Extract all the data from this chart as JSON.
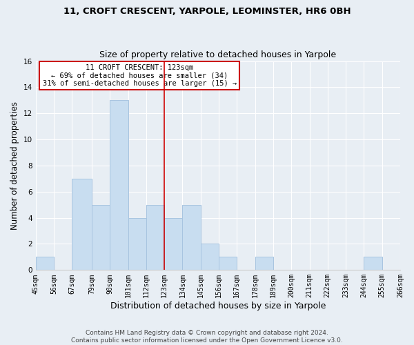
{
  "title1": "11, CROFT CRESCENT, YARPOLE, LEOMINSTER, HR6 0BH",
  "title2": "Size of property relative to detached houses in Yarpole",
  "xlabel": "Distribution of detached houses by size in Yarpole",
  "ylabel": "Number of detached properties",
  "bar_color": "#c8ddf0",
  "bar_edgecolor": "#a8c4e0",
  "bins": [
    45,
    56,
    67,
    79,
    90,
    101,
    112,
    123,
    134,
    145,
    156,
    167,
    178,
    189,
    200,
    211,
    222,
    233,
    244,
    255,
    266
  ],
  "counts": [
    1,
    0,
    7,
    5,
    13,
    4,
    5,
    4,
    5,
    2,
    1,
    0,
    1,
    0,
    0,
    0,
    0,
    0,
    1,
    0
  ],
  "tick_labels": [
    "45sqm",
    "56sqm",
    "67sqm",
    "79sqm",
    "90sqm",
    "101sqm",
    "112sqm",
    "123sqm",
    "134sqm",
    "145sqm",
    "156sqm",
    "167sqm",
    "178sqm",
    "189sqm",
    "200sqm",
    "211sqm",
    "222sqm",
    "233sqm",
    "244sqm",
    "255sqm",
    "266sqm"
  ],
  "vline_x": 123,
  "vline_color": "#cc0000",
  "annotation_line1": "11 CROFT CRESCENT: 123sqm",
  "annotation_line2": "← 69% of detached houses are smaller (34)",
  "annotation_line3": "31% of semi-detached houses are larger (15) →",
  "annotation_box_facecolor": "#ffffff",
  "annotation_box_edgecolor": "#cc0000",
  "ylim": [
    0,
    16
  ],
  "yticks": [
    0,
    2,
    4,
    6,
    8,
    10,
    12,
    14,
    16
  ],
  "footer1": "Contains HM Land Registry data © Crown copyright and database right 2024.",
  "footer2": "Contains public sector information licensed under the Open Government Licence v3.0.",
  "background_color": "#e8eef4",
  "plot_bg_color": "#e8eef4",
  "grid_color": "#ffffff",
  "title1_fontsize": 9.5,
  "title2_fontsize": 9.0,
  "xlabel_fontsize": 9.0,
  "ylabel_fontsize": 8.5,
  "tick_fontsize": 7.0,
  "annotation_fontsize": 7.5,
  "footer_fontsize": 6.5
}
